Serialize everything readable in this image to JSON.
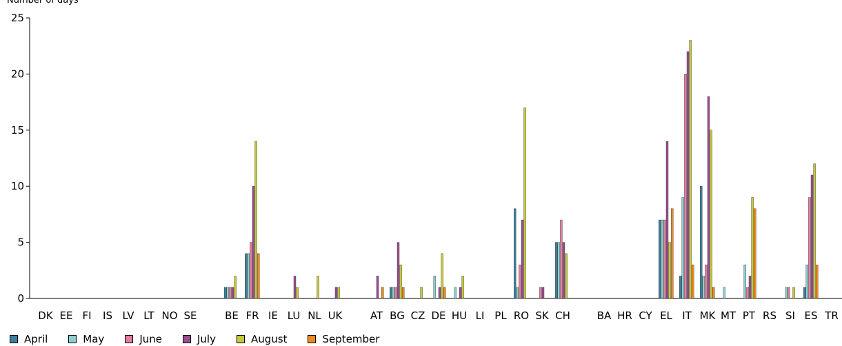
{
  "chart_data": {
    "type": "bar",
    "title": "",
    "ylabel": "Number of days",
    "xlabel": "",
    "ylim": [
      0,
      25
    ],
    "yticks": [
      0,
      5,
      10,
      15,
      20,
      25
    ],
    "grid": false,
    "legend_position": "bottom-left",
    "categories": [
      "DK",
      "EE",
      "FI",
      "IS",
      "LV",
      "LT",
      "NO",
      "SE",
      "",
      "BE",
      "FR",
      "IE",
      "LU",
      "NL",
      "UK",
      "",
      "AT",
      "BG",
      "CZ",
      "DE",
      "HU",
      "LI",
      "PL",
      "RO",
      "SK",
      "CH",
      "",
      "BA",
      "HR",
      "CY",
      "EL",
      "IT",
      "MK",
      "MT",
      "PT",
      "RS",
      "SI",
      "ES",
      "TR"
    ],
    "series": [
      {
        "name": "April",
        "color": "#3f7f9c",
        "values": [
          0,
          0,
          0,
          0,
          0,
          0,
          0,
          0,
          0,
          1,
          4,
          0,
          0,
          0,
          0,
          0,
          0,
          1,
          0,
          0,
          0,
          0,
          0,
          8,
          0,
          5,
          0,
          0,
          0,
          0,
          7,
          2,
          10,
          0,
          0,
          0,
          0,
          1,
          0
        ]
      },
      {
        "name": "May",
        "color": "#8dcfcf",
        "values": [
          0,
          0,
          0,
          0,
          0,
          0,
          0,
          0,
          0,
          1,
          4,
          0,
          0,
          0,
          0,
          0,
          0,
          1,
          0,
          2,
          1,
          0,
          0,
          1,
          0,
          5,
          0,
          0,
          0,
          0,
          7,
          9,
          2,
          1,
          3,
          0,
          1,
          3,
          0
        ]
      },
      {
        "name": "June",
        "color": "#e2809e",
        "values": [
          0,
          0,
          0,
          0,
          0,
          0,
          0,
          0,
          0,
          1,
          5,
          0,
          0,
          0,
          0,
          0,
          0,
          1,
          0,
          0,
          0,
          0,
          0,
          3,
          1,
          7,
          0,
          0,
          0,
          0,
          7,
          20,
          3,
          0,
          1,
          0,
          1,
          9,
          0
        ]
      },
      {
        "name": "July",
        "color": "#9a4e8e",
        "values": [
          0,
          0,
          0,
          0,
          0,
          0,
          0,
          0,
          0,
          1,
          10,
          0,
          2,
          0,
          1,
          0,
          2,
          5,
          0,
          1,
          1,
          0,
          0,
          7,
          1,
          5,
          0,
          0,
          0,
          0,
          14,
          22,
          18,
          0,
          2,
          0,
          0,
          11,
          0
        ]
      },
      {
        "name": "August",
        "color": "#c4c93a",
        "values": [
          0,
          0,
          0,
          0,
          0,
          0,
          0,
          0,
          0,
          2,
          14,
          0,
          1,
          2,
          1,
          0,
          0,
          3,
          1,
          4,
          2,
          0,
          0,
          17,
          0,
          4,
          0,
          0,
          0,
          0,
          5,
          23,
          15,
          0,
          9,
          0,
          1,
          12,
          0
        ]
      },
      {
        "name": "September",
        "color": "#f08a1e",
        "values": [
          0,
          0,
          0,
          0,
          0,
          0,
          0,
          0,
          0,
          0,
          4,
          0,
          0,
          0,
          0,
          0,
          1,
          1,
          0,
          1,
          0,
          0,
          0,
          0,
          0,
          0,
          0,
          0,
          0,
          0,
          8,
          3,
          1,
          0,
          8,
          0,
          0,
          3,
          0
        ]
      }
    ]
  }
}
